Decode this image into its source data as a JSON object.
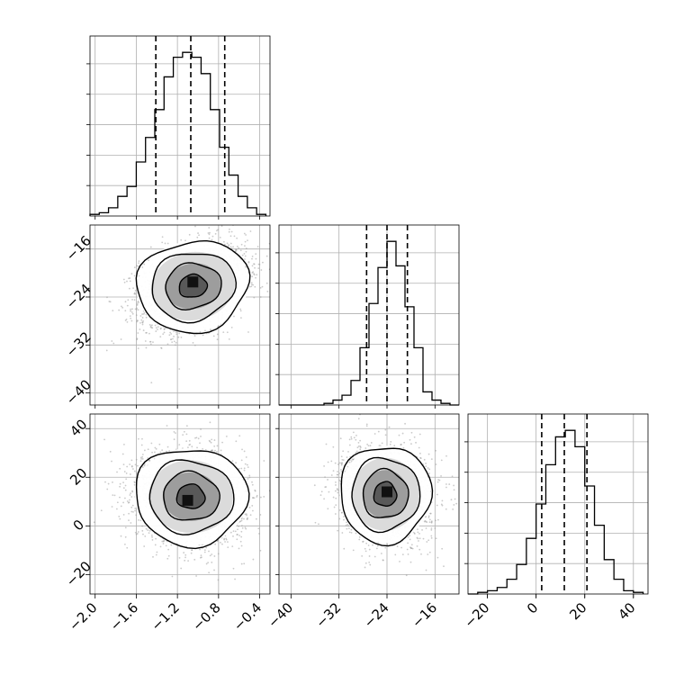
{
  "chart_data": {
    "type": "corner",
    "grid": true,
    "colors": {
      "ink": "#000000",
      "scatter": "#9e9e9e",
      "grid": "#b0b0b0",
      "background": "#ffffff"
    },
    "parameters": [
      {
        "range": [
          -2.05,
          -0.3
        ],
        "ticks": [
          -2.0,
          -1.6,
          -1.2,
          -0.8,
          -0.4
        ],
        "tick_labels": [
          "−2.0",
          "−1.6",
          "−1.2",
          "−0.8",
          "−0.4"
        ],
        "quantiles": [
          -1.41,
          -1.07,
          -0.74
        ],
        "center": -1.07,
        "spread": 0.26
      },
      {
        "range": [
          -42,
          -12
        ],
        "ticks": [
          -40,
          -32,
          -24,
          -16
        ],
        "tick_labels": [
          "−40",
          "−32",
          "−24",
          "−16"
        ],
        "quantiles": [
          -27.4,
          -24.0,
          -20.6
        ],
        "center": -23.8,
        "spread": 3.6
      },
      {
        "range": [
          -28,
          46
        ],
        "ticks": [
          -20,
          0,
          20,
          40
        ],
        "tick_labels": [
          "−20",
          "0",
          "20",
          "40"
        ],
        "quantiles": [
          2.3,
          11.6,
          20.9
        ],
        "center": 11.6,
        "spread": 9.5
      }
    ],
    "histograms": [
      {
        "param": 0,
        "max_count": 1.0,
        "bin_edges": [
          -2.05,
          -1.96,
          -1.87,
          -1.78,
          -1.69,
          -1.6,
          -1.51,
          -1.42,
          -1.33,
          -1.24,
          -1.15,
          -1.06,
          -0.97,
          -0.88,
          -0.79,
          -0.7,
          -0.61,
          -0.52,
          -0.43,
          -0.34
        ],
        "counts": [
          0.01,
          0.02,
          0.05,
          0.12,
          0.18,
          0.33,
          0.48,
          0.65,
          0.85,
          0.97,
          1.0,
          0.97,
          0.87,
          0.65,
          0.42,
          0.25,
          0.12,
          0.05,
          0.01
        ]
      },
      {
        "param": 1,
        "max_count": 1.0,
        "bin_edges": [
          -42,
          -40.5,
          -39,
          -37.5,
          -36,
          -34.5,
          -33,
          -31.5,
          -30,
          -28.5,
          -27,
          -25.5,
          -24,
          -22.5,
          -21,
          -19.5,
          -18,
          -16.5,
          -15,
          -13.5,
          -12
        ],
        "counts": [
          0,
          0,
          0,
          0,
          0,
          0.01,
          0.03,
          0.06,
          0.15,
          0.35,
          0.62,
          0.84,
          1.0,
          0.85,
          0.6,
          0.35,
          0.08,
          0.03,
          0.01,
          0
        ]
      },
      {
        "param": 2,
        "max_count": 1.0,
        "bin_edges": [
          -28,
          -24,
          -20,
          -16,
          -12,
          -8,
          -4,
          0,
          4,
          8,
          12,
          16,
          20,
          24,
          28,
          32,
          36,
          40,
          44
        ],
        "counts": [
          0,
          0.01,
          0.02,
          0.04,
          0.09,
          0.18,
          0.34,
          0.55,
          0.79,
          0.96,
          1.0,
          0.9,
          0.66,
          0.42,
          0.21,
          0.09,
          0.02,
          0.01
        ]
      }
    ],
    "pairs": [
      {
        "x": 0,
        "y": 1,
        "center": [
          -1.05,
          -22.2
        ],
        "correlation": 0.3,
        "peak": [
          -1.05,
          -21.5
        ]
      },
      {
        "x": 0,
        "y": 2,
        "center": [
          -1.07,
          12.0
        ],
        "correlation": -0.1,
        "peak": [
          -1.1,
          10.5
        ]
      },
      {
        "x": 1,
        "y": 2,
        "center": [
          -24.3,
          13.0
        ],
        "correlation": -0.1,
        "peak": [
          -24.0,
          14.0
        ]
      }
    ],
    "contour_levels_sigma": [
      0.5,
      1.0,
      1.5,
      2.0
    ]
  }
}
